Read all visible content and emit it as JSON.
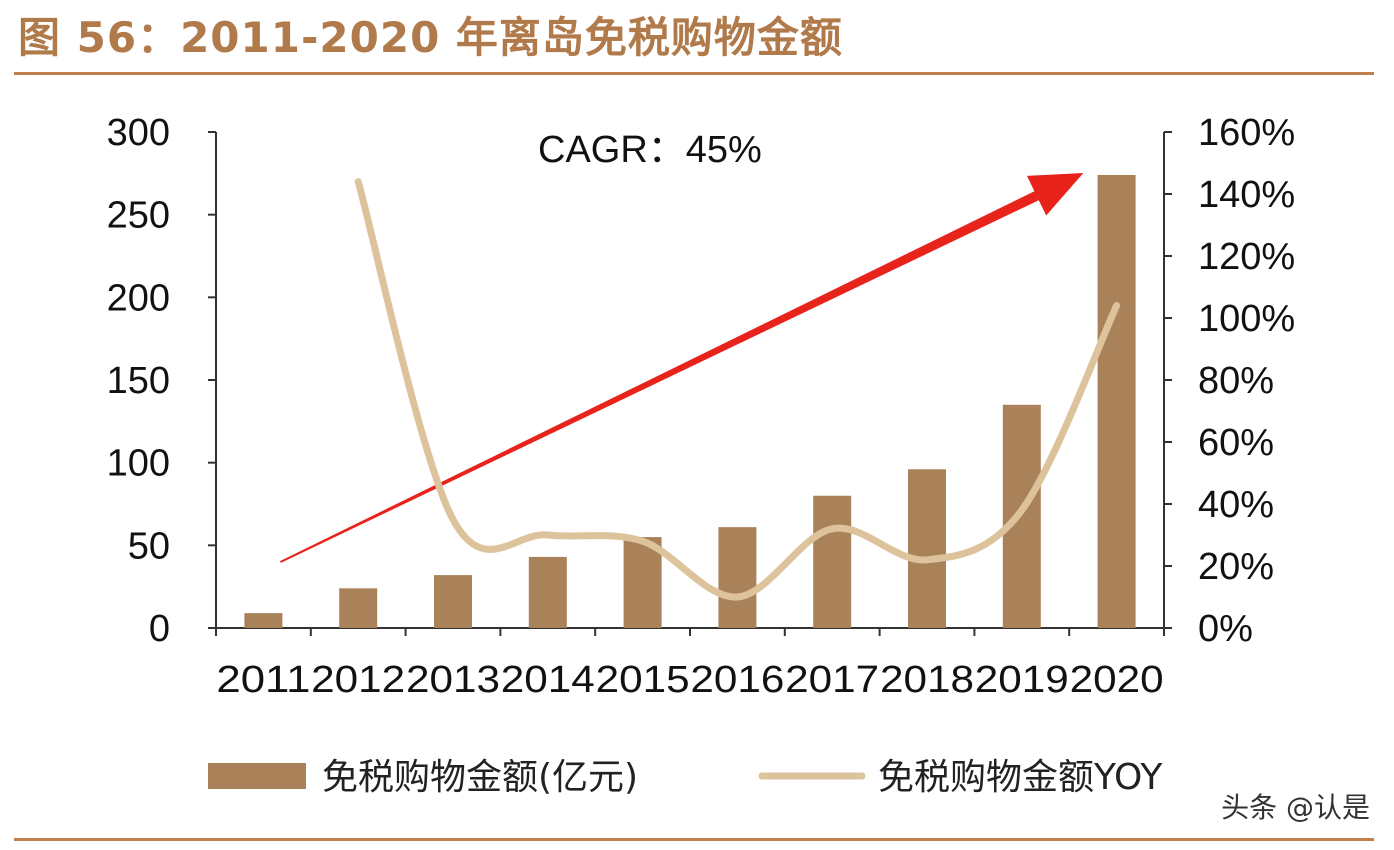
{
  "header": {
    "title": "图 56：2011-2020 年离岛免税购物金额"
  },
  "watermark": "头条 @认是",
  "colors": {
    "title": "#b07a4a",
    "rule": "#c0804e",
    "bar": "#a9825a",
    "line": "#dcc39b",
    "arrow": "#e8231c"
  },
  "chart_data": {
    "type": "bar",
    "categories": [
      "2011",
      "2012",
      "2013",
      "2014",
      "2015",
      "2016",
      "2017",
      "2018",
      "2019",
      "2020"
    ],
    "series": [
      {
        "name": "免税购物金额(亿元)",
        "type": "bar",
        "axis": "left",
        "values": [
          9,
          24,
          32,
          43,
          55,
          61,
          80,
          96,
          135,
          274
        ]
      },
      {
        "name": "免税购物金额YOY",
        "type": "line",
        "axis": "right",
        "values": [
          null,
          144,
          35,
          30,
          28,
          10,
          32,
          22,
          38,
          104
        ]
      }
    ],
    "y_left": {
      "ylim": [
        0,
        300
      ],
      "ticks": [
        "0",
        "50",
        "100",
        "150",
        "200",
        "250",
        "300"
      ]
    },
    "y_right": {
      "ylim": [
        0,
        160
      ],
      "ticks": [
        "0%",
        "20%",
        "40%",
        "60%",
        "80%",
        "100%",
        "120%",
        "140%",
        "160%"
      ]
    },
    "annotation": "CAGR：45%",
    "grid": false,
    "legend_position": "bottom"
  }
}
